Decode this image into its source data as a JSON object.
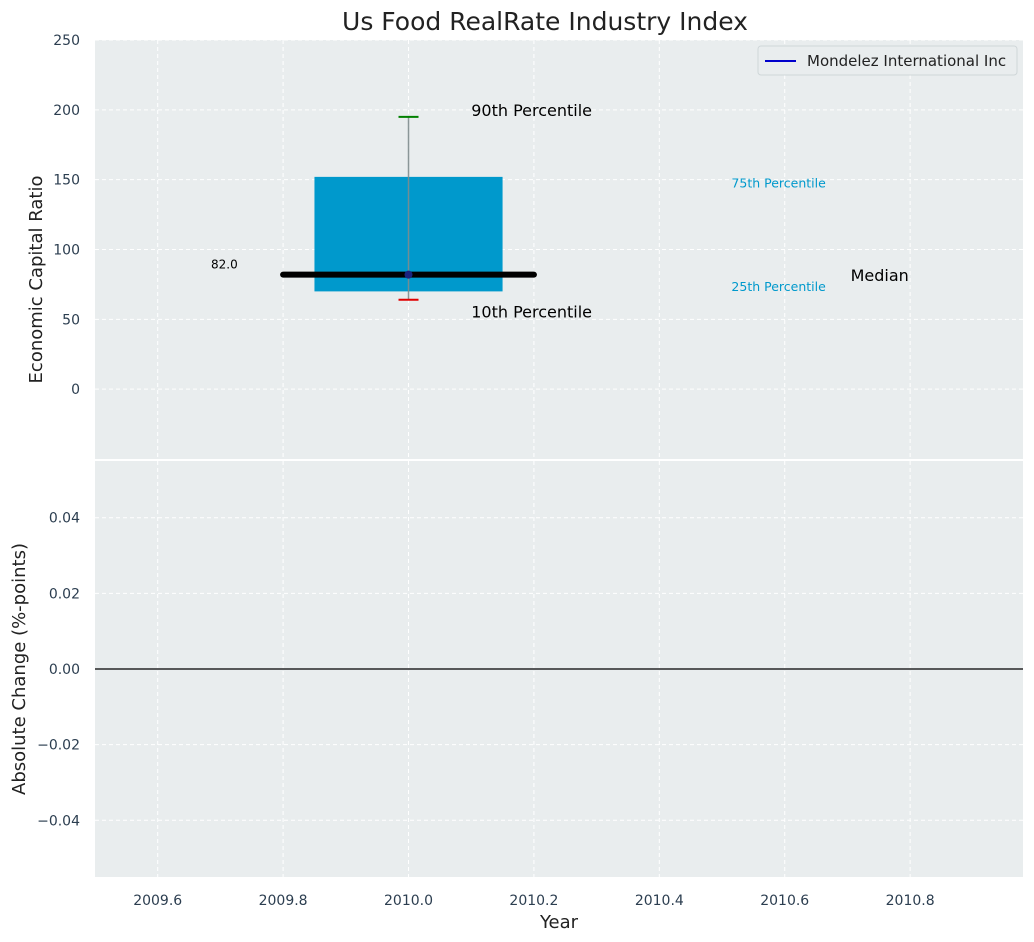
{
  "chart_data": {
    "title": "Us Food RealRate Industry Index",
    "xlabel": "Year",
    "xlim": [
      2009.5,
      2010.98
    ],
    "xticks": [
      2009.6,
      2009.8,
      2010.0,
      2010.2,
      2010.4,
      2010.6,
      2010.8
    ],
    "xtick_labels": [
      "2009.6",
      "2009.8",
      "2010.0",
      "2010.2",
      "2010.4",
      "2010.6",
      "2010.8"
    ],
    "grid": true,
    "colors": {
      "panel_bg": "#e9edee",
      "box": "#0099cc",
      "median": "#000000",
      "p90_cap": "#008000",
      "p10_cap": "#e00000",
      "whisker": "#7f8c8d",
      "series_line": "#0000cc",
      "zero_line": "#000000"
    },
    "panels": [
      {
        "type": "box",
        "ylabel": "Economic Capital Ratio",
        "ylim": [
          -50,
          250
        ],
        "yticks": [
          0,
          50,
          100,
          150,
          200,
          250
        ],
        "ytick_labels": [
          "0",
          "50",
          "100",
          "150",
          "200",
          "250"
        ],
        "legend_position": "top-right",
        "legend": [
          {
            "label": "Mondelez International Inc"
          }
        ],
        "box": {
          "x": 2010.0,
          "x_left": 2009.85,
          "x_right": 2010.15,
          "p10": 64,
          "p25": 70,
          "median": 82,
          "p75": 152,
          "p90": 195,
          "median_line_x": [
            2009.8,
            2010.2
          ],
          "point": {
            "x": 2010.0,
            "y": 82
          }
        },
        "annotations": [
          {
            "text": "90th Percentile",
            "x": 2010.1,
            "y": 199,
            "style": "big"
          },
          {
            "text": "10th Percentile",
            "x": 2010.1,
            "y": 55,
            "style": "big"
          },
          {
            "text": "75th Percentile",
            "x": 2010.515,
            "y": 148,
            "style": "small"
          },
          {
            "text": "25th Percentile",
            "x": 2010.515,
            "y": 74,
            "style": "small"
          },
          {
            "text": "Median",
            "x": 2010.705,
            "y": 81,
            "style": "big"
          },
          {
            "text": "82.0",
            "x": 2009.685,
            "y": 90,
            "style": "val"
          }
        ]
      },
      {
        "type": "line",
        "ylabel": "Absolute Change (%-points)",
        "ylim": [
          -0.055,
          0.055
        ],
        "yticks": [
          -0.04,
          -0.02,
          0.0,
          0.02,
          0.04
        ],
        "ytick_labels": [
          "−0.04",
          "−0.02",
          "0.00",
          "0.02",
          "0.04"
        ],
        "hline": 0.0
      }
    ]
  }
}
